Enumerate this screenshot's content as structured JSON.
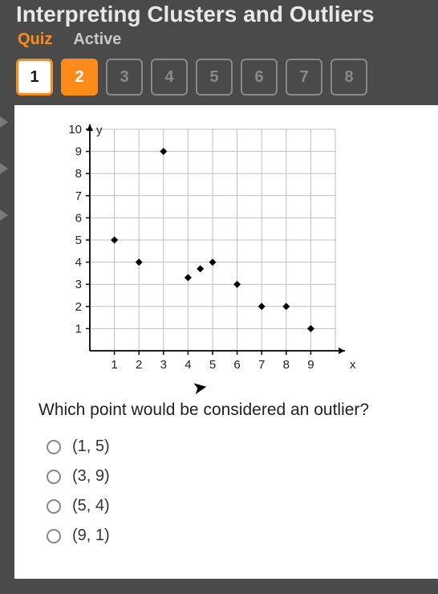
{
  "header": {
    "title": "Interpreting Clusters and Outliers",
    "sub_quiz": "Quiz",
    "sub_active": "Active"
  },
  "tabs": [
    {
      "label": "1",
      "state": "current"
    },
    {
      "label": "2",
      "state": "active"
    },
    {
      "label": "3",
      "state": "idle"
    },
    {
      "label": "4",
      "state": "idle"
    },
    {
      "label": "5",
      "state": "idle"
    },
    {
      "label": "6",
      "state": "idle"
    },
    {
      "label": "7",
      "state": "idle"
    },
    {
      "label": "8",
      "state": "idle"
    }
  ],
  "chart": {
    "type": "scatter",
    "xlabel": "x",
    "ylabel": "y",
    "xlim": [
      0,
      10
    ],
    "ylim": [
      0,
      10
    ],
    "xticks": [
      1,
      2,
      3,
      4,
      5,
      6,
      7,
      8,
      9
    ],
    "yticks": [
      1,
      2,
      3,
      4,
      5,
      6,
      7,
      8,
      9,
      10
    ],
    "grid_color": "#bfbfbf",
    "axis_color": "#000000",
    "background_color": "#ffffff",
    "marker_color": "#000000",
    "marker_size": 4.5,
    "points": [
      {
        "x": 1,
        "y": 5
      },
      {
        "x": 2,
        "y": 4
      },
      {
        "x": 3,
        "y": 9
      },
      {
        "x": 4,
        "y": 3.3
      },
      {
        "x": 4.5,
        "y": 3.7
      },
      {
        "x": 5,
        "y": 4
      },
      {
        "x": 6,
        "y": 3
      },
      {
        "x": 7,
        "y": 2
      },
      {
        "x": 8,
        "y": 2
      },
      {
        "x": 9,
        "y": 1
      }
    ],
    "tick_fontsize": 15,
    "label_fontsize": 15
  },
  "question": "Which point would be considered an outlier?",
  "options": [
    {
      "label": "(1, 5)"
    },
    {
      "label": "(3, 9)"
    },
    {
      "label": "(5, 4)"
    },
    {
      "label": "(9, 1)"
    }
  ],
  "colors": {
    "accent": "#ff8c1a",
    "page_bg": "#4a4a4a",
    "card_bg": "#ffffff"
  }
}
